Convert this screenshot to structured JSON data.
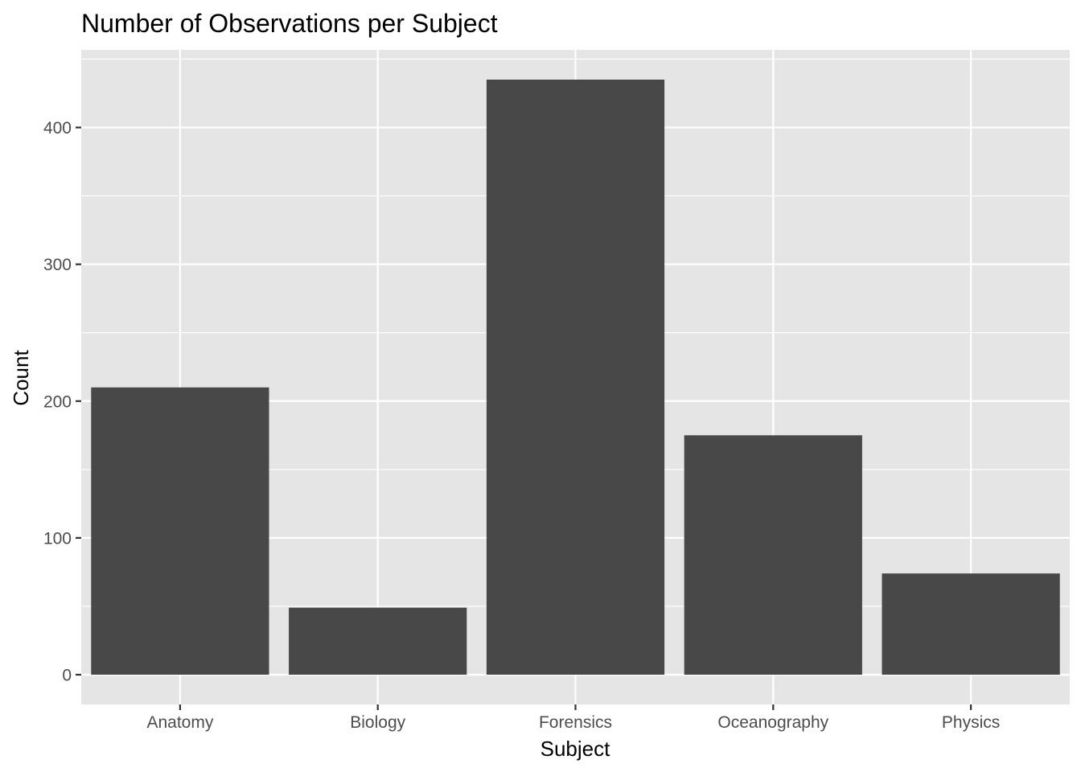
{
  "chart_data": {
    "type": "bar",
    "title": "Number of Observations per Subject",
    "xlabel": "Subject",
    "ylabel": "Count",
    "categories": [
      "Anatomy",
      "Biology",
      "Forensics",
      "Oceanography",
      "Physics"
    ],
    "values": [
      210,
      49,
      435,
      175,
      74
    ],
    "ylim": [
      -21.75,
      456.75
    ],
    "yticks": [
      0,
      100,
      200,
      300,
      400
    ],
    "grid": true,
    "legend": "none",
    "colors": {
      "panel": "#e5e5e5",
      "grid": "#ffffff",
      "bar": "#484848",
      "tick": "#333333",
      "tick_label": "#4d4d4d"
    }
  }
}
